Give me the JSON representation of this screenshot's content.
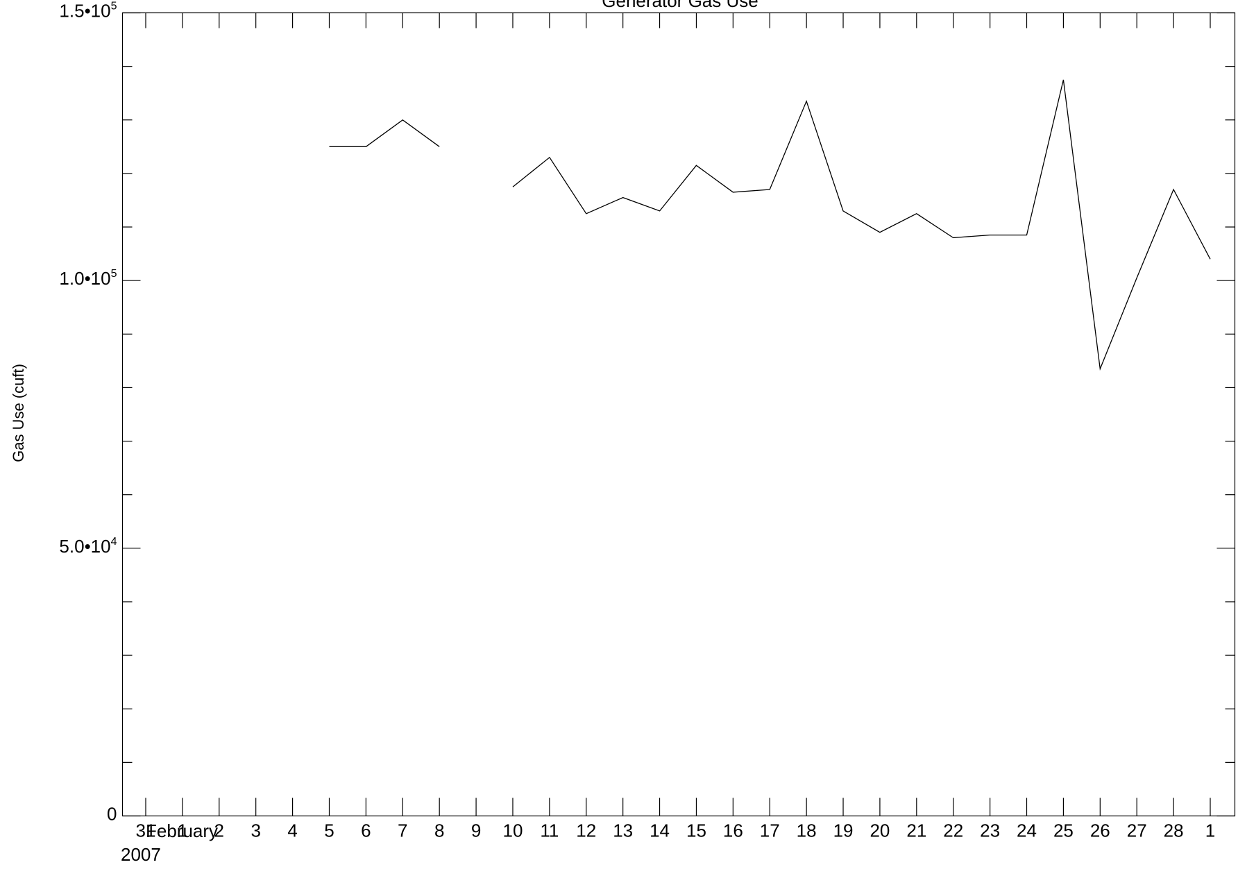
{
  "chart_data": {
    "type": "line",
    "title": "Generator Gas Use",
    "ylabel": "Gas Use (cuft)",
    "xlabel": "",
    "x_month_label": "February",
    "x_year_label": "2007",
    "xlim": [
      "2007-01-31",
      "2007-03-01"
    ],
    "ylim": [
      0,
      150000
    ],
    "y_ticks": [
      {
        "value": 0,
        "mantissa": "0",
        "exponent": ""
      },
      {
        "value": 50000,
        "mantissa": "5.0•10",
        "exponent": "4"
      },
      {
        "value": 100000,
        "mantissa": "1.0•10",
        "exponent": "5"
      },
      {
        "value": 150000,
        "mantissa": "1.5•10",
        "exponent": "5"
      }
    ],
    "x_ticks": [
      {
        "date": "2007-01-31",
        "label": "31"
      },
      {
        "date": "2007-02-01",
        "label": "1"
      },
      {
        "date": "2007-02-02",
        "label": "2"
      },
      {
        "date": "2007-02-03",
        "label": "3"
      },
      {
        "date": "2007-02-04",
        "label": "4"
      },
      {
        "date": "2007-02-05",
        "label": "5"
      },
      {
        "date": "2007-02-06",
        "label": "6"
      },
      {
        "date": "2007-02-07",
        "label": "7"
      },
      {
        "date": "2007-02-08",
        "label": "8"
      },
      {
        "date": "2007-02-09",
        "label": "9"
      },
      {
        "date": "2007-02-10",
        "label": "10"
      },
      {
        "date": "2007-02-11",
        "label": "11"
      },
      {
        "date": "2007-02-12",
        "label": "12"
      },
      {
        "date": "2007-02-13",
        "label": "13"
      },
      {
        "date": "2007-02-14",
        "label": "14"
      },
      {
        "date": "2007-02-15",
        "label": "15"
      },
      {
        "date": "2007-02-16",
        "label": "16"
      },
      {
        "date": "2007-02-17",
        "label": "17"
      },
      {
        "date": "2007-02-18",
        "label": "18"
      },
      {
        "date": "2007-02-19",
        "label": "19"
      },
      {
        "date": "2007-02-20",
        "label": "20"
      },
      {
        "date": "2007-02-21",
        "label": "21"
      },
      {
        "date": "2007-02-22",
        "label": "22"
      },
      {
        "date": "2007-02-23",
        "label": "23"
      },
      {
        "date": "2007-02-24",
        "label": "24"
      },
      {
        "date": "2007-02-25",
        "label": "25"
      },
      {
        "date": "2007-02-26",
        "label": "26"
      },
      {
        "date": "2007-02-27",
        "label": "27"
      },
      {
        "date": "2007-02-28",
        "label": "28"
      },
      {
        "date": "2007-03-01",
        "label": "1"
      }
    ],
    "y_minor_step": 10000,
    "grid": false,
    "legend": "none",
    "series": [
      {
        "segments": [
          [
            {
              "x": "2007-02-05",
              "y": 125000
            },
            {
              "x": "2007-02-06",
              "y": 125000
            },
            {
              "x": "2007-02-07",
              "y": 130000
            },
            {
              "x": "2007-02-08",
              "y": 125000
            }
          ],
          [
            {
              "x": "2007-02-10",
              "y": 117500
            },
            {
              "x": "2007-02-11",
              "y": 123000
            },
            {
              "x": "2007-02-12",
              "y": 112500
            },
            {
              "x": "2007-02-13",
              "y": 115500
            },
            {
              "x": "2007-02-14",
              "y": 113000
            },
            {
              "x": "2007-02-15",
              "y": 121500
            },
            {
              "x": "2007-02-16",
              "y": 116500
            },
            {
              "x": "2007-02-17",
              "y": 117000
            },
            {
              "x": "2007-02-18",
              "y": 133500
            },
            {
              "x": "2007-02-19",
              "y": 113000
            },
            {
              "x": "2007-02-20",
              "y": 109000
            },
            {
              "x": "2007-02-21",
              "y": 112500
            },
            {
              "x": "2007-02-22",
              "y": 108000
            },
            {
              "x": "2007-02-23",
              "y": 108500
            },
            {
              "x": "2007-02-24",
              "y": 108500
            },
            {
              "x": "2007-02-25",
              "y": 137500
            },
            {
              "x": "2007-02-26",
              "y": 83500
            },
            {
              "x": "2007-02-27",
              "y": 100500
            },
            {
              "x": "2007-02-28",
              "y": 117000
            },
            {
              "x": "2007-03-01",
              "y": 104000
            }
          ]
        ]
      }
    ]
  }
}
